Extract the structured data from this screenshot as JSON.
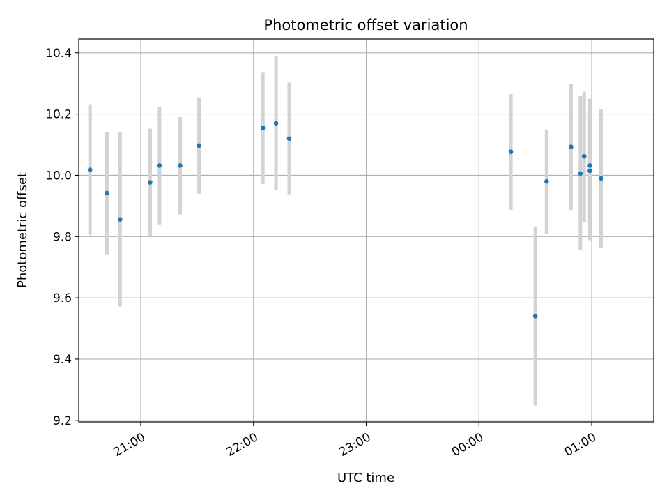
{
  "chart_data": {
    "type": "scatter",
    "title": "Photometric offset variation",
    "xlabel": "UTC time",
    "ylabel": "Photometric offset",
    "grid": true,
    "x_ticks": [
      "21:00",
      "22:00",
      "23:00",
      "00:00",
      "01:00"
    ],
    "y_ticks": [
      "9.2",
      "9.4",
      "9.6",
      "9.8",
      "10.0",
      "10.2",
      "10.4"
    ],
    "xlim": [
      "20:27",
      "01:33"
    ],
    "ylim": [
      9.195,
      10.445
    ],
    "colors": {
      "points": "#1f77b4",
      "error_bars": "#d3d3d3",
      "grid": "#b0b0b0"
    },
    "points": [
      {
        "time": "20:33",
        "y": 10.018,
        "err_low": 9.805,
        "err_high": 10.232
      },
      {
        "time": "20:42",
        "y": 9.942,
        "err_low": 9.74,
        "err_high": 10.142
      },
      {
        "time": "20:49",
        "y": 9.856,
        "err_low": 9.572,
        "err_high": 10.14
      },
      {
        "time": "21:05",
        "y": 9.977,
        "err_low": 9.8,
        "err_high": 10.152
      },
      {
        "time": "21:10",
        "y": 10.032,
        "err_low": 9.84,
        "err_high": 10.222
      },
      {
        "time": "21:21",
        "y": 10.032,
        "err_low": 9.872,
        "err_high": 10.19
      },
      {
        "time": "21:31",
        "y": 10.097,
        "err_low": 9.94,
        "err_high": 10.255
      },
      {
        "time": "22:05",
        "y": 10.155,
        "err_low": 9.972,
        "err_high": 10.337
      },
      {
        "time": "22:12",
        "y": 10.17,
        "err_low": 9.953,
        "err_high": 10.388
      },
      {
        "time": "22:19",
        "y": 10.12,
        "err_low": 9.938,
        "err_high": 10.303
      },
      {
        "time": "00:17",
        "y": 10.077,
        "err_low": 9.887,
        "err_high": 10.265
      },
      {
        "time": "00:30",
        "y": 9.54,
        "err_low": 9.248,
        "err_high": 9.833
      },
      {
        "time": "00:36",
        "y": 9.98,
        "err_low": 9.808,
        "err_high": 10.15
      },
      {
        "time": "00:49",
        "y": 10.093,
        "err_low": 9.887,
        "err_high": 10.297
      },
      {
        "time": "00:54",
        "y": 10.006,
        "err_low": 9.755,
        "err_high": 10.258
      },
      {
        "time": "00:56",
        "y": 10.062,
        "err_low": 9.847,
        "err_high": 10.273
      },
      {
        "time": "00:59",
        "y": 10.015,
        "err_low": 9.788,
        "err_high": 10.25
      },
      {
        "time": "00:59",
        "y": 10.032,
        "err_low": 9.85,
        "err_high": 10.215
      },
      {
        "time": "01:05",
        "y": 9.99,
        "err_low": 9.762,
        "err_high": 10.215
      }
    ]
  }
}
